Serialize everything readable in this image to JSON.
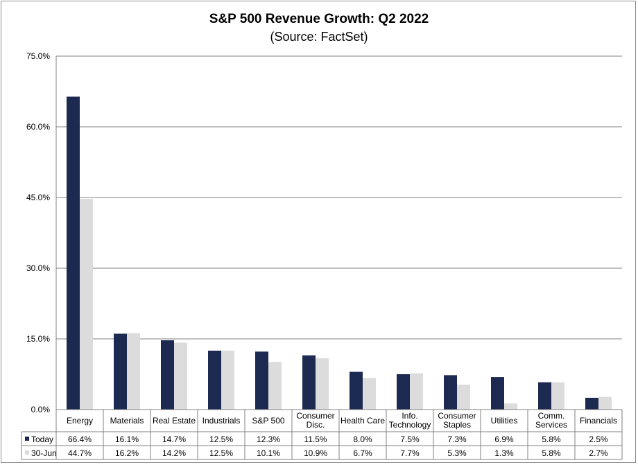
{
  "chart_data": {
    "type": "bar",
    "title": "S&P 500 Revenue Growth: Q2 2022",
    "subtitle": "(Source: FactSet)",
    "categories": [
      [
        "Energy"
      ],
      [
        "Materials"
      ],
      [
        "Real Estate"
      ],
      [
        "Industrials"
      ],
      [
        "S&P 500"
      ],
      [
        "Consumer",
        "Disc."
      ],
      [
        "Health Care"
      ],
      [
        "Info.",
        "Technology"
      ],
      [
        "Consumer",
        "Staples"
      ],
      [
        "Utilities"
      ],
      [
        "Comm.",
        "Services"
      ],
      [
        "Financials"
      ]
    ],
    "series": [
      {
        "name": "Today",
        "color": "#1c2951",
        "values": [
          66.4,
          16.1,
          14.7,
          12.5,
          12.3,
          11.5,
          8.0,
          7.5,
          7.3,
          6.9,
          5.8,
          2.5
        ],
        "labels": [
          "66.4%",
          "16.1%",
          "14.7%",
          "12.5%",
          "12.3%",
          "11.5%",
          "8.0%",
          "7.5%",
          "7.3%",
          "6.9%",
          "5.8%",
          "2.5%"
        ]
      },
      {
        "name": "30-Jun",
        "color": "#dcdcdc",
        "values": [
          44.7,
          16.2,
          14.2,
          12.5,
          10.1,
          10.9,
          6.7,
          7.7,
          5.3,
          1.3,
          5.8,
          2.7
        ],
        "labels": [
          "44.7%",
          "16.2%",
          "14.2%",
          "12.5%",
          "10.1%",
          "10.9%",
          "6.7%",
          "7.7%",
          "5.3%",
          "1.3%",
          "5.8%",
          "2.7%"
        ]
      }
    ],
    "ylim": [
      0,
      75
    ],
    "yticks": [
      0,
      15,
      30,
      45,
      60,
      75
    ],
    "ytick_labels": [
      "0.0%",
      "15.0%",
      "30.0%",
      "45.0%",
      "60.0%",
      "75.0%"
    ],
    "grid": true,
    "legend": "data-table"
  }
}
